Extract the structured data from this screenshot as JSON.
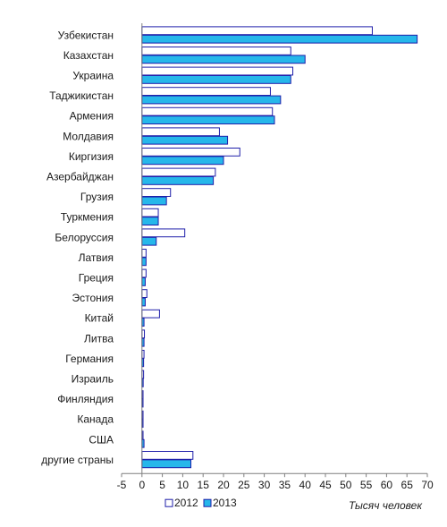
{
  "chart_data": {
    "type": "bar",
    "orientation": "horizontal",
    "categories": [
      "Узбекистан",
      "Казахстан",
      "Украина",
      "Таджикистан",
      "Армения",
      "Молдавия",
      "Киргизия",
      "Азербайджан",
      "Грузия",
      "Туркмения",
      "Белоруссия",
      "Латвия",
      "Греция",
      "Эстония",
      "Китай",
      "Литва",
      "Германия",
      "Израиль",
      "Финляндия",
      "Канада",
      "США",
      "другие страны"
    ],
    "series": [
      {
        "name": "2012",
        "values": [
          56.5,
          36.5,
          37,
          31.5,
          32,
          19,
          24,
          18,
          7,
          4,
          10.5,
          1,
          1,
          1.2,
          4.3,
          0.6,
          0.5,
          0.4,
          0.2,
          0.2,
          0.2,
          12.5
        ],
        "color": "#ffffff",
        "stroke": "#1f1faa"
      },
      {
        "name": "2013",
        "values": [
          67.5,
          40,
          36.5,
          34,
          32.5,
          21,
          20,
          17.5,
          6,
          4,
          3.5,
          1,
          0.8,
          0.8,
          0.5,
          0.5,
          0.4,
          0.3,
          0.2,
          0.2,
          0.5,
          12
        ],
        "color": "#26b7ea",
        "stroke": "#1f1faa"
      }
    ],
    "xlim": [
      -5,
      70
    ],
    "xticks": [
      "-5",
      "0",
      "5",
      "10",
      "15",
      "20",
      "25",
      "30",
      "35",
      "40",
      "45",
      "50",
      "55",
      "60",
      "65",
      "70"
    ],
    "xlabel": "Тысяч человек",
    "legend": {
      "placement": "bottom-left",
      "entries": [
        "2012",
        "2013"
      ]
    },
    "grid": false
  }
}
